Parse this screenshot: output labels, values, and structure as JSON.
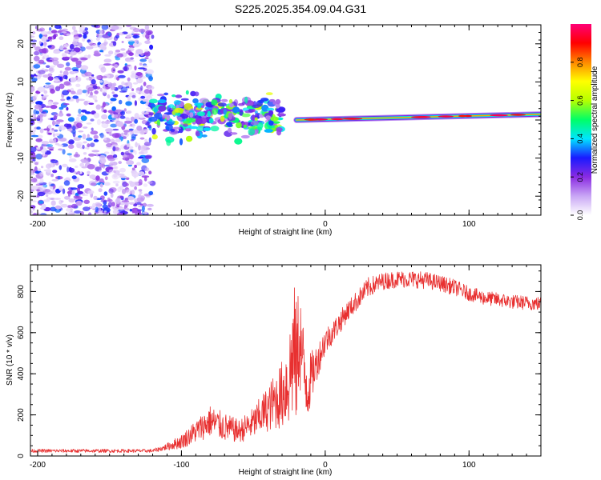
{
  "title": "S225.2025.354.09.04.G31",
  "chart_data": [
    {
      "type": "heatmap",
      "xlabel": "Height of straight line (km)",
      "ylabel": "Frequency (Hz)",
      "xlim": [
        -205,
        150
      ],
      "ylim": [
        -25,
        25
      ],
      "xticks": [
        -200,
        -100,
        0,
        100
      ],
      "yticks": [
        20,
        10,
        0,
        -10,
        -20
      ],
      "colorbar": {
        "label": "Normalized spectral amplitude",
        "range": [
          0.0,
          1.0
        ],
        "ticks": [
          0.0,
          0.2,
          0.4,
          0.6,
          0.8
        ],
        "colors": [
          "#ffffff",
          "#c9a6f5",
          "#8a2be2",
          "#1a1aff",
          "#00e5ff",
          "#00ff66",
          "#b6ff00",
          "#ffff00",
          "#ff8800",
          "#ff0000",
          "#ff0077"
        ]
      },
      "regions": [
        {
          "name": "diffuse-noise",
          "x": [
            -205,
            -120
          ],
          "freq": [
            -25,
            25
          ],
          "amplitude": 0.15
        },
        {
          "name": "bright-blobs",
          "x": [
            -120,
            -30
          ],
          "freq": [
            -8,
            10
          ],
          "amplitude": 0.35
        },
        {
          "name": "sharp-line",
          "x": [
            -20,
            150
          ],
          "freq_start": 0.0,
          "freq_end": 1.5,
          "amplitude": 0.5
        }
      ]
    },
    {
      "type": "line",
      "xlabel": "Height of straight line (km)",
      "ylabel": "SNR (10 * v/v)",
      "xlim": [
        -205,
        150
      ],
      "ylim": [
        0,
        930
      ],
      "xticks": [
        -200,
        -100,
        0,
        100
      ],
      "yticks": [
        0,
        200,
        400,
        600,
        800
      ],
      "series": [
        {
          "name": "SNR",
          "color": "#e83030",
          "x": [
            -205,
            -180,
            -150,
            -120,
            -112,
            -100,
            -90,
            -80,
            -70,
            -60,
            -50,
            -40,
            -30,
            -25,
            -22,
            -20,
            -18,
            -15,
            -12,
            -10,
            -5,
            0,
            5,
            10,
            15,
            20,
            25,
            30,
            40,
            50,
            60,
            70,
            80,
            90,
            100,
            110,
            120,
            130,
            140,
            150
          ],
          "y": [
            25,
            25,
            25,
            25,
            40,
            70,
            120,
            170,
            140,
            120,
            160,
            230,
            300,
            380,
            520,
            440,
            600,
            420,
            330,
            380,
            470,
            560,
            600,
            650,
            700,
            740,
            780,
            820,
            850,
            860,
            860,
            855,
            840,
            820,
            790,
            770,
            760,
            750,
            745,
            740
          ],
          "noise": [
            6,
            6,
            6,
            6,
            10,
            25,
            40,
            55,
            50,
            40,
            55,
            80,
            120,
            180,
            250,
            220,
            200,
            150,
            120,
            90,
            60,
            50,
            40,
            40,
            35,
            35,
            35,
            35,
            30,
            30,
            30,
            30,
            28,
            28,
            25,
            25,
            25,
            25,
            25,
            25
          ]
        }
      ]
    }
  ]
}
